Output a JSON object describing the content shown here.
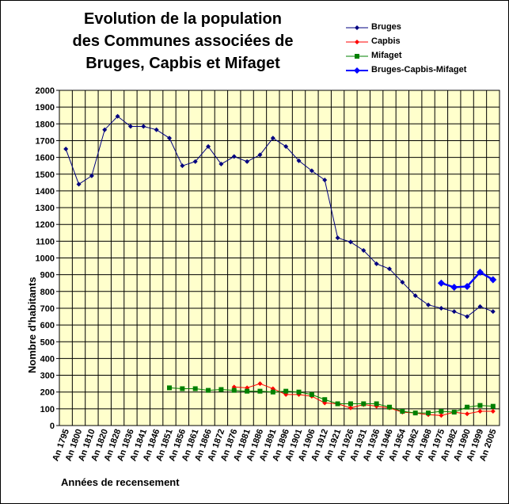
{
  "chart_data": {
    "type": "line",
    "title": [
      "Evolution de la population",
      "des Communes associées de",
      "Bruges, Capbis et Mifaget"
    ],
    "xlabel": "Années de recensement",
    "ylabel": "Nombre d'habitants",
    "ylim": [
      0,
      2000
    ],
    "ytick_step": 100,
    "grid": true,
    "legend_position": "top-right",
    "categories": [
      "An 1795",
      "An 1800",
      "An 1810",
      "An 1820",
      "An 1828",
      "An 1836",
      "An 1841",
      "An 1846",
      "An 1851",
      "An 1856",
      "An 1861",
      "An 1866",
      "An 1872",
      "An 1876",
      "An 1881",
      "An 1886",
      "An 1891",
      "An 1896",
      "An 1901",
      "An 1906",
      "An 1912",
      "An 1921",
      "An 1926",
      "An 1931",
      "An 1936",
      "An 1946",
      "An 1954",
      "An 1962",
      "An 1968",
      "An 1975",
      "An 1982",
      "An 1990",
      "An 1999",
      "An 2005"
    ],
    "series": [
      {
        "name": "Bruges",
        "color": "#000080",
        "marker": "diamond-small",
        "values": [
          1650,
          1440,
          1490,
          1765,
          1845,
          1785,
          1785,
          1765,
          1715,
          1550,
          1575,
          1665,
          1560,
          1605,
          1575,
          1615,
          1715,
          1665,
          1580,
          1520,
          1465,
          1120,
          1095,
          1045,
          965,
          935,
          855,
          775,
          720,
          700,
          680,
          650,
          710,
          680
        ]
      },
      {
        "name": "Capbis",
        "color": "#ff0000",
        "marker": "diamond-small",
        "values": [
          null,
          null,
          null,
          null,
          null,
          null,
          null,
          null,
          null,
          null,
          null,
          null,
          null,
          230,
          225,
          250,
          220,
          185,
          185,
          175,
          135,
          130,
          105,
          125,
          115,
          105,
          80,
          75,
          65,
          60,
          80,
          70,
          85,
          85
        ]
      },
      {
        "name": "Mifaget",
        "color": "#008000",
        "marker": "square",
        "values": [
          null,
          null,
          null,
          null,
          null,
          null,
          null,
          null,
          225,
          220,
          220,
          210,
          215,
          210,
          205,
          205,
          200,
          205,
          200,
          185,
          155,
          130,
          130,
          130,
          130,
          110,
          85,
          75,
          75,
          85,
          80,
          110,
          120,
          115
        ]
      },
      {
        "name": "Bruges-Capbis-Mifaget",
        "color": "#0000ff",
        "marker": "diamond-large",
        "values": [
          null,
          null,
          null,
          null,
          null,
          null,
          null,
          null,
          null,
          null,
          null,
          null,
          null,
          null,
          null,
          null,
          null,
          null,
          null,
          null,
          null,
          null,
          null,
          null,
          null,
          null,
          null,
          null,
          null,
          850,
          825,
          830,
          915,
          870
        ]
      }
    ]
  }
}
